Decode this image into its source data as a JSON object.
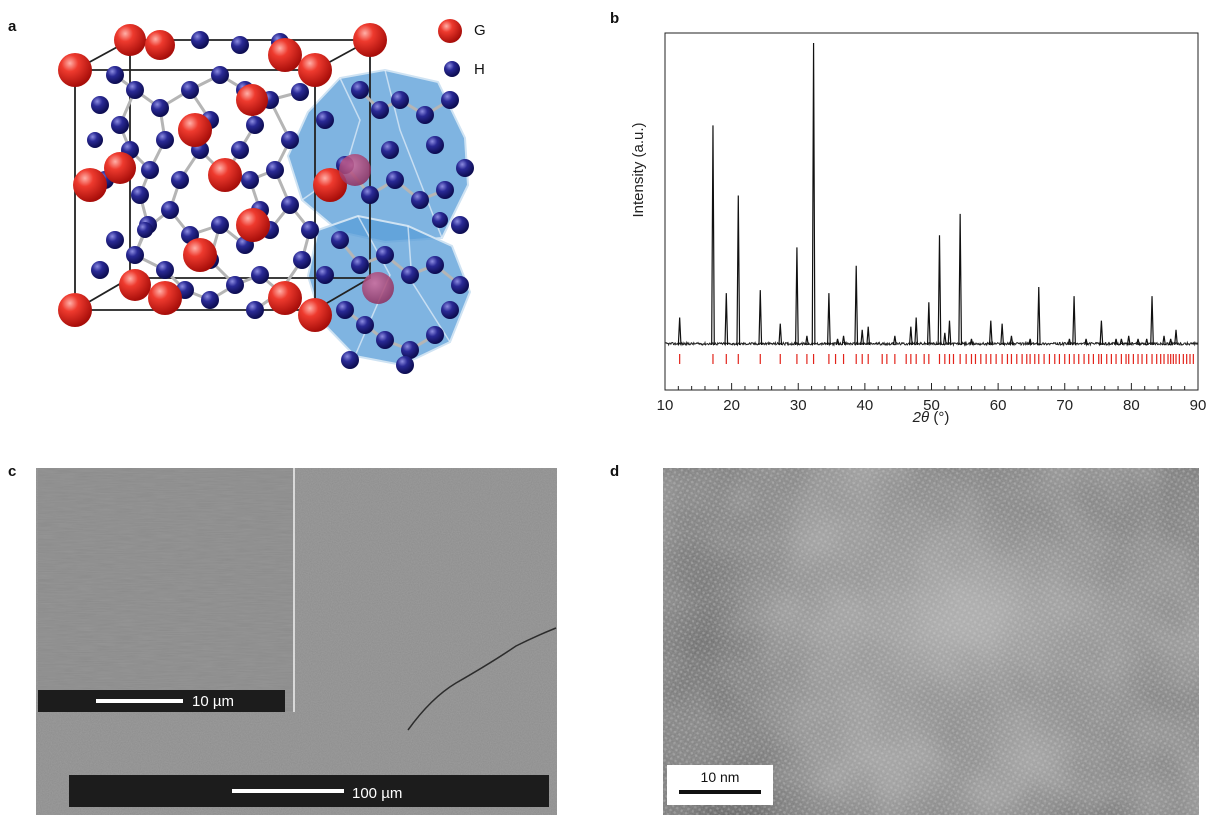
{
  "panels": {
    "a": {
      "label": "a",
      "legend": [
        {
          "symbol": "G",
          "color": "#e0201c"
        },
        {
          "symbol": "H",
          "color": "#20208a"
        }
      ],
      "colors": {
        "guest": "#e0201c",
        "host": "#1f1f85",
        "cage": "#5a9fd8",
        "bond": "#b9b9b9"
      }
    },
    "b": {
      "label": "b",
      "x_ticks": [
        "10",
        "20",
        "30",
        "40",
        "50",
        "60",
        "70",
        "80",
        "90"
      ],
      "xlabel_italic": "2θ",
      "xlabel_unit": " (°)",
      "ylabel": "Intensity (a.u.)"
    },
    "c": {
      "label": "c",
      "inset_scale": "10 µm",
      "main_scale": "100 µm"
    },
    "d": {
      "label": "d",
      "scale": "10 nm"
    }
  },
  "chart_data": {
    "type": "line",
    "title": "",
    "xlabel": "2θ (°)",
    "ylabel": "Intensity (a.u.)",
    "xlim": [
      10,
      90
    ],
    "ylim": [
      0,
      100
    ],
    "grid": false,
    "series": [
      {
        "x": [
          12.2,
          17.2,
          19.2,
          21.0,
          24.3,
          27.3,
          29.8,
          31.3,
          32.3,
          34.6,
          35.9,
          36.8,
          38.7,
          39.6,
          40.5,
          44.5,
          46.9,
          47.7,
          49.6,
          51.2,
          52.0,
          52.7,
          54.3,
          56.0,
          58.9,
          60.6,
          62.0,
          64.8,
          66.1,
          70.7,
          71.4,
          73.2,
          75.5,
          77.7,
          78.5,
          79.6,
          81.0,
          82.3,
          83.1,
          84.9,
          85.9,
          86.7
        ],
        "y": [
          9,
          72,
          17,
          49,
          18,
          7,
          32,
          3,
          99,
          17,
          2,
          3,
          26,
          5,
          6,
          3,
          6,
          9,
          14,
          36,
          4,
          8,
          43,
          2,
          8,
          7,
          3,
          2,
          19,
          2,
          16,
          2,
          8,
          2,
          2,
          3,
          2,
          2,
          16,
          3,
          2,
          5
        ]
      }
    ],
    "reference_marks": [
      12.2,
      17.2,
      19.2,
      21.0,
      24.3,
      27.3,
      29.8,
      31.3,
      32.3,
      34.6,
      35.6,
      36.8,
      38.7,
      39.6,
      40.5,
      42.6,
      43.3,
      44.5,
      46.2,
      46.9,
      47.7,
      48.9,
      49.6,
      51.2,
      52.0,
      52.7,
      53.3,
      54.3,
      55.2,
      56.0,
      56.6,
      57.4,
      58.2,
      58.9,
      59.7,
      60.6,
      61.4,
      62.0,
      62.8,
      63.6,
      64.3,
      64.8,
      65.5,
      66.1,
      66.9,
      67.7,
      68.5,
      69.2,
      70.0,
      70.7,
      71.4,
      72.1,
      72.9,
      73.6,
      74.3,
      75.1,
      75.5,
      76.3,
      77.0,
      77.7,
      78.5,
      79.2,
      79.6,
      80.3,
      81.0,
      81.6,
      82.3,
      83.1,
      83.8,
      84.4,
      84.9,
      85.5,
      85.9,
      86.3,
      86.7,
      87.2,
      87.8,
      88.3,
      88.8,
      89.3
    ]
  }
}
